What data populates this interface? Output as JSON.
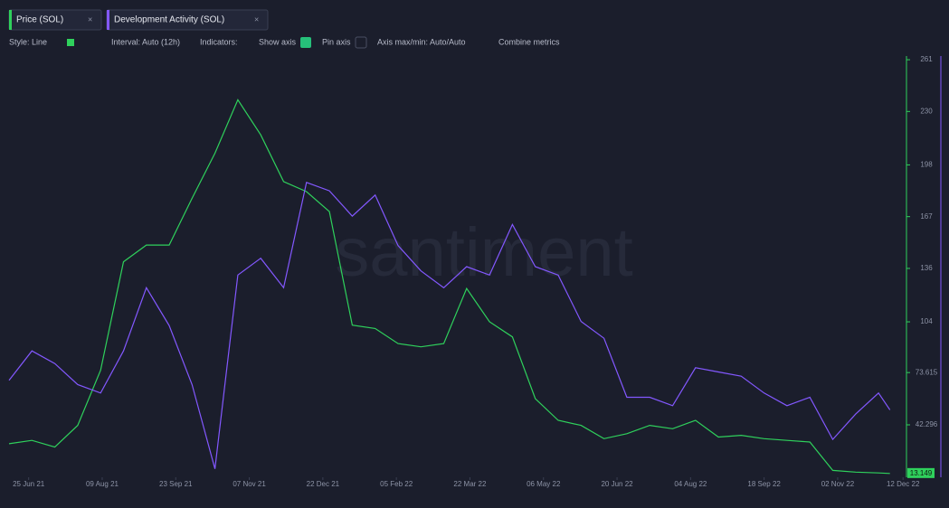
{
  "toolbar": {
    "controls": [
      "Style: Line",
      "Interval: Auto (12h)",
      "Indicators:",
      "Show axis",
      "Pin axis",
      "Axis max/min: Auto/Auto",
      "Combine metrics"
    ]
  },
  "chart_data": {
    "type": "line",
    "watermark": "santiment",
    "x": [
      "2021-06-13",
      "2021-06-27",
      "2021-07-11",
      "2021-07-25",
      "2021-08-08",
      "2021-08-22",
      "2021-09-05",
      "2021-09-19",
      "2021-10-03",
      "2021-10-17",
      "2021-10-31",
      "2021-11-14",
      "2021-11-28",
      "2021-12-12",
      "2021-12-26",
      "2022-01-09",
      "2022-01-23",
      "2022-02-06",
      "2022-02-20",
      "2022-03-06",
      "2022-03-20",
      "2022-04-03",
      "2022-04-17",
      "2022-05-01",
      "2022-05-15",
      "2022-05-29",
      "2022-06-12",
      "2022-06-26",
      "2022-07-10",
      "2022-07-24",
      "2022-08-07",
      "2022-08-21",
      "2022-09-04",
      "2022-09-18",
      "2022-10-02",
      "2022-10-16",
      "2022-10-30",
      "2022-11-13",
      "2022-11-27",
      "2022-12-04"
    ],
    "xlim": [
      "2021-06-13",
      "2022-12-13"
    ],
    "xticks": [
      {
        "value": "2021-06-25",
        "label": "25 Jun 21"
      },
      {
        "value": "2021-08-09",
        "label": "09 Aug 21"
      },
      {
        "value": "2021-09-23",
        "label": "23 Sep 21"
      },
      {
        "value": "2021-11-07",
        "label": "07 Nov 21"
      },
      {
        "value": "2021-12-22",
        "label": "22 Dec 21"
      },
      {
        "value": "2022-02-05",
        "label": "05 Feb 22"
      },
      {
        "value": "2022-03-22",
        "label": "22 Mar 22"
      },
      {
        "value": "2022-05-06",
        "label": "06 May 22"
      },
      {
        "value": "2022-06-20",
        "label": "20 Jun 22"
      },
      {
        "value": "2022-08-04",
        "label": "04 Aug 22"
      },
      {
        "value": "2022-09-18",
        "label": "18 Sep 22"
      },
      {
        "value": "2022-11-02",
        "label": "02 Nov 22"
      },
      {
        "value": "2022-12-12",
        "label": "12 Dec 22"
      }
    ],
    "ylim": [
      10.9,
      263.2
    ],
    "yticks": [
      261,
      230,
      198,
      167,
      136,
      104,
      73.615,
      42.296
    ],
    "y2lim": [
      0,
      100
    ],
    "series": [
      {
        "name": "Price (SOL)",
        "color": "#2fd15c",
        "values": [
          31,
          33,
          29,
          42,
          75,
          140,
          150,
          150,
          178,
          205,
          237,
          216,
          188,
          182,
          170,
          102,
          100,
          91,
          89,
          91,
          124,
          104,
          95,
          58,
          45,
          42,
          34,
          37,
          42,
          40,
          45,
          35,
          36,
          34,
          33,
          32,
          15,
          14,
          13.5,
          13.149
        ]
      },
      {
        "name": "Development Activity (SOL)",
        "color": "#8358ff",
        "axis": "y2",
        "values": [
          23,
          30,
          27,
          22,
          20,
          30,
          45,
          36,
          22,
          2,
          48,
          52,
          45,
          70,
          68,
          62,
          67,
          55,
          49,
          45,
          50,
          48,
          60,
          50,
          48,
          37,
          33,
          19,
          19,
          17,
          26,
          25,
          24,
          20,
          17,
          19,
          9,
          15,
          20,
          16
        ]
      }
    ]
  }
}
